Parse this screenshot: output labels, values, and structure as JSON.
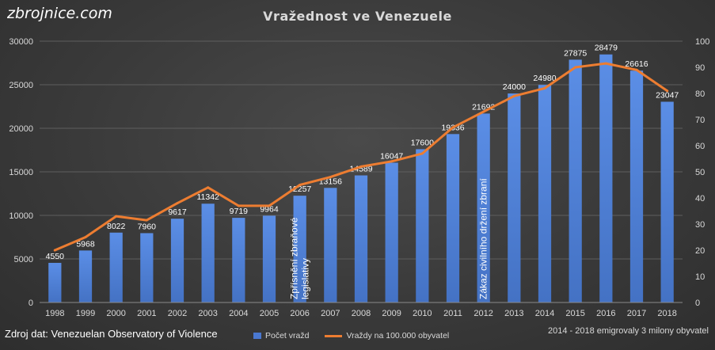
{
  "header": {
    "logo": "zbrojnice.com",
    "title": "Vražednost ve Venezuele"
  },
  "footer": {
    "source": "Zdroj dat: Venezuelan Observatory of Violence",
    "note": "2014 - 2018 emigrovaly 3 milony obyvatel"
  },
  "colors": {
    "bar": "#4472c4",
    "line": "#ed7d31",
    "background": "#3a3a3a"
  },
  "chart_data": {
    "type": "bar",
    "title": "Vražednost ve Venezuele",
    "categories": [
      "1998",
      "1999",
      "2000",
      "2001",
      "2002",
      "2003",
      "2004",
      "2005",
      "2006",
      "2007",
      "2008",
      "2009",
      "2010",
      "2011",
      "2012",
      "2013",
      "2014",
      "2015",
      "2016",
      "2017",
      "2018"
    ],
    "series": [
      {
        "name": "Počet vražd",
        "type": "bar",
        "axis": "left",
        "values": [
          4550,
          5968,
          8022,
          7960,
          9617,
          11342,
          9719,
          9964,
          12257,
          13156,
          14589,
          16047,
          17600,
          19336,
          21692,
          24000,
          24980,
          27875,
          28479,
          26616,
          23047
        ],
        "data_labels": [
          "4550",
          "5968",
          "8022",
          "7960",
          "9617",
          "11342",
          "9719",
          "9964",
          "12257",
          "13156",
          "14589",
          "16047",
          "17600",
          "19336",
          "21692",
          "24000",
          "24980",
          "27875",
          "28479",
          "26616",
          "23047"
        ]
      },
      {
        "name": "Vraždy na 100.000 obyvatel",
        "type": "line",
        "axis": "right",
        "values": [
          20,
          25,
          33,
          31.5,
          38,
          44,
          37,
          37,
          45,
          48,
          52,
          54,
          57,
          67,
          73,
          79,
          82,
          90,
          91.5,
          89,
          81
        ]
      }
    ],
    "y_left": {
      "ylim": [
        0,
        30000
      ],
      "ticks": [
        "0",
        "5000",
        "10000",
        "15000",
        "20000",
        "25000",
        "30000"
      ]
    },
    "y_right": {
      "ylim": [
        0,
        100
      ],
      "ticks": [
        "0",
        "10",
        "20",
        "30",
        "40",
        "50",
        "60",
        "70",
        "80",
        "90",
        "100"
      ]
    },
    "annotations": [
      {
        "category": "2006",
        "lines": [
          "Zpřísnění zbraňové",
          "legislativy"
        ]
      },
      {
        "category": "2012",
        "lines": [
          "Zákaz civilního držení zbraní"
        ]
      }
    ],
    "grid": true,
    "legend": "bottom"
  }
}
